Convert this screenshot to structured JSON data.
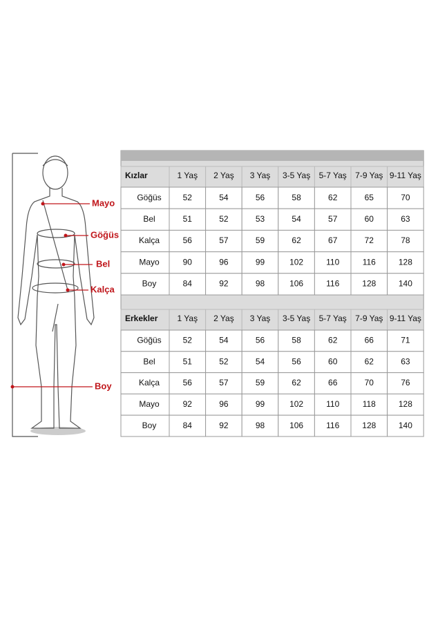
{
  "figure": {
    "labels": [
      "Mayo",
      "Göğüs",
      "Bel",
      "Kalça",
      "Boy"
    ]
  },
  "tables": [
    {
      "title": "Kızlar",
      "columns": [
        "1 Yaş",
        "2 Yaş",
        "3 Yaş",
        "3-5 Yaş",
        "5-7 Yaş",
        "7-9 Yaş",
        "9-11 Yaş"
      ],
      "rows": [
        {
          "label": "Göğüs",
          "values": [
            52,
            54,
            56,
            58,
            62,
            65,
            70
          ]
        },
        {
          "label": "Bel",
          "values": [
            51,
            52,
            53,
            54,
            57,
            60,
            63
          ]
        },
        {
          "label": "Kalça",
          "values": [
            56,
            57,
            59,
            62,
            67,
            72,
            78
          ]
        },
        {
          "label": "Mayo",
          "values": [
            90,
            96,
            99,
            102,
            110,
            116,
            128
          ]
        },
        {
          "label": "Boy",
          "values": [
            84,
            92,
            98,
            106,
            116,
            128,
            140
          ]
        }
      ]
    },
    {
      "title": "Erkekler",
      "columns": [
        "1 Yaş",
        "2 Yaş",
        "3 Yaş",
        "3-5 Yaş",
        "5-7 Yaş",
        "7-9 Yaş",
        "9-11 Yaş"
      ],
      "rows": [
        {
          "label": "Göğüs",
          "values": [
            52,
            54,
            56,
            58,
            62,
            66,
            71
          ]
        },
        {
          "label": "Bel",
          "values": [
            51,
            52,
            54,
            56,
            60,
            62,
            63
          ]
        },
        {
          "label": "Kalça",
          "values": [
            56,
            57,
            59,
            62,
            66,
            70,
            76
          ]
        },
        {
          "label": "Mayo",
          "values": [
            92,
            96,
            99,
            102,
            110,
            118,
            128
          ]
        },
        {
          "label": "Boy",
          "values": [
            84,
            92,
            98,
            106,
            116,
            128,
            140
          ]
        }
      ]
    }
  ]
}
